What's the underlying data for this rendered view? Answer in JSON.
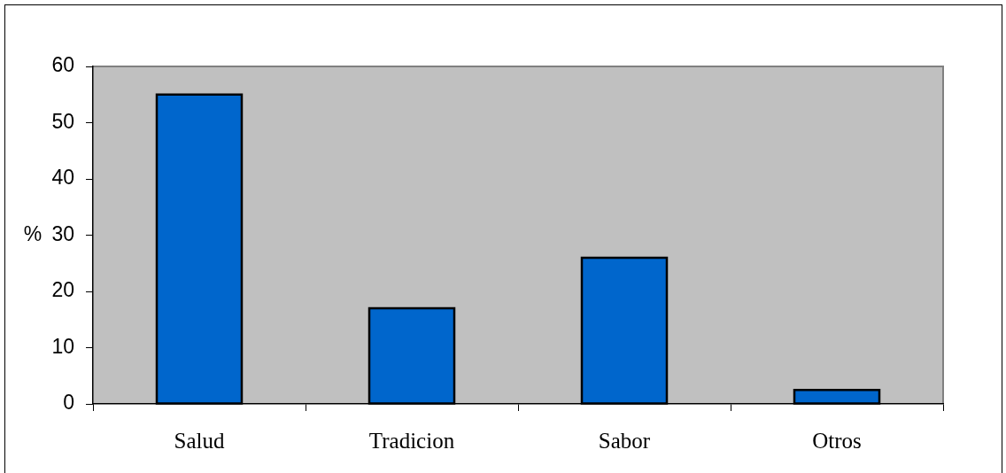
{
  "chart_data": {
    "type": "bar",
    "categories": [
      "Salud",
      "Tradicion",
      "Sabor",
      "Otros"
    ],
    "values": [
      55,
      17,
      26,
      2.5
    ],
    "color": "#0066cc",
    "ylabel": "%",
    "ylim": [
      0,
      60
    ],
    "yticks": [
      0,
      10,
      20,
      30,
      40,
      50,
      60
    ]
  }
}
